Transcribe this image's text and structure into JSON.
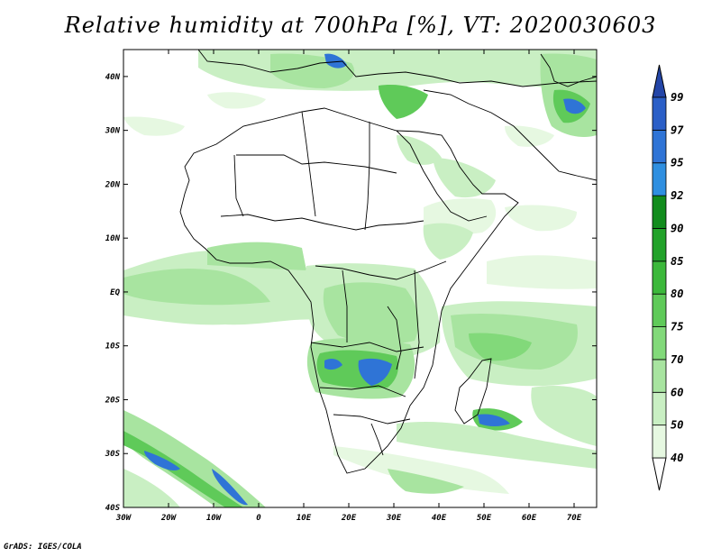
{
  "title": "Relative humidity at 700hPa [%], VT: 2020030603",
  "credit": "GrADS: IGES/COLA",
  "map": {
    "lon_range": [
      -30,
      75
    ],
    "lat_range": [
      -40,
      45
    ],
    "lon_ticks": [
      "30W",
      "20W",
      "10W",
      "0",
      "10E",
      "20E",
      "30E",
      "40E",
      "50E",
      "60E",
      "70E"
    ],
    "lat_ticks": [
      "40S",
      "30S",
      "20S",
      "10S",
      "EQ",
      "10N",
      "20N",
      "30N",
      "40N"
    ]
  },
  "colorbar": {
    "labels": [
      "40",
      "50",
      "60",
      "70",
      "75",
      "80",
      "85",
      "90",
      "92",
      "95",
      "97",
      "99"
    ],
    "colors": [
      "#ffffff",
      "#e6f8e1",
      "#c9efc3",
      "#a8e4a0",
      "#82d97a",
      "#5fca59",
      "#3cb83b",
      "#22a22a",
      "#128c1d",
      "#2f8fe0",
      "#2f74d6",
      "#2b5fc7",
      "#2446a8"
    ]
  }
}
